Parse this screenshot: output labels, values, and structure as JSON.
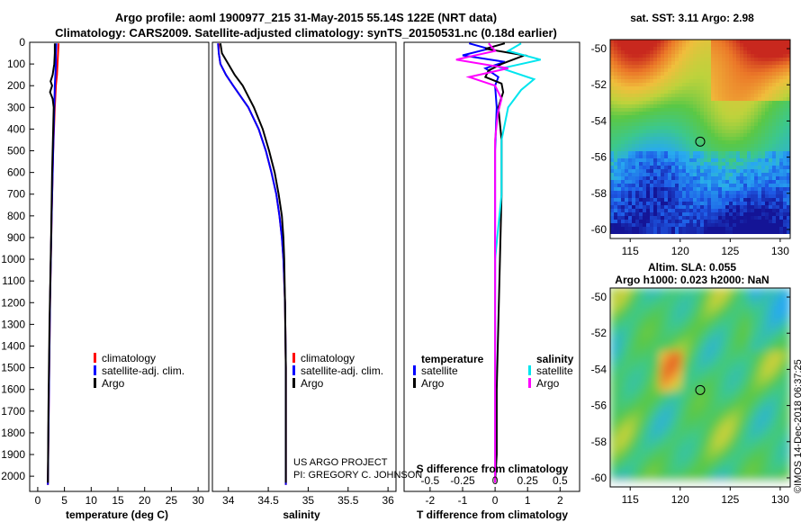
{
  "title_line1": "Argo profile: aoml 1900977_215 31-May-2015 55.14S 122E (NRT data)",
  "title_line2": "Climatology: CARS2009. Satellite-adjusted climatology: synTS_20150531.nc (0.18d earlier)",
  "colors": {
    "climatology": "#ff0000",
    "satellite": "#0000ff",
    "argo": "#000000",
    "sat_s": "#00e5ee",
    "argo_s": "#ff00ff"
  },
  "chart_data": [
    {
      "type": "line",
      "name": "temperature",
      "xlabel": "temperature (deg C)",
      "xlim": [
        -1.5,
        32
      ],
      "xticks": [
        0,
        5,
        10,
        15,
        20,
        25,
        30
      ],
      "xtick_labels": [
        "0",
        "5",
        "10",
        "15",
        "20",
        "25",
        "30"
      ],
      "ylim": [
        0,
        2070
      ],
      "yticks": [
        0,
        100,
        200,
        300,
        400,
        500,
        600,
        700,
        800,
        900,
        1000,
        1100,
        1200,
        1300,
        1400,
        1500,
        1600,
        1700,
        1800,
        1900,
        2000
      ],
      "ytick_labels": [
        "0",
        "100",
        "200",
        "300",
        "400",
        "500",
        "600",
        "700",
        "800",
        "900",
        "1000",
        "1100",
        "1200",
        "1300",
        "1400",
        "1500",
        "1600",
        "1700",
        "1800",
        "1900",
        "2000"
      ],
      "legend": [
        "climatology",
        "satellite-adj. clim.",
        "Argo"
      ],
      "series": [
        {
          "name": "climatology",
          "depth": [
            5,
            50,
            100,
            150,
            200,
            300,
            500,
            800,
            1200,
            1600,
            2040
          ],
          "values": [
            3.9,
            3.8,
            3.7,
            3.6,
            3.4,
            3.2,
            2.9,
            2.6,
            2.3,
            2.1,
            1.9
          ]
        },
        {
          "name": "satellite-adj. clim.",
          "depth": [
            5,
            50,
            100,
            150,
            200,
            300,
            500,
            800,
            1200,
            1600,
            2040
          ],
          "values": [
            3.5,
            3.4,
            3.4,
            3.3,
            3.2,
            3.1,
            2.9,
            2.6,
            2.3,
            2.1,
            1.9
          ]
        },
        {
          "name": "Argo",
          "depth": [
            5,
            50,
            100,
            150,
            180,
            200,
            230,
            260,
            300,
            400,
            600,
            900,
            1300,
            1700,
            2030
          ],
          "values": [
            3.2,
            3.2,
            3.1,
            2.8,
            2.4,
            2.7,
            2.3,
            2.8,
            3.0,
            2.9,
            2.7,
            2.5,
            2.2,
            2.0,
            1.9
          ]
        }
      ]
    },
    {
      "type": "line",
      "name": "salinity",
      "xlabel": "salinity",
      "xlim": [
        33.8,
        36.1
      ],
      "xticks": [
        34,
        34.5,
        35,
        35.5,
        36
      ],
      "xtick_labels": [
        "34",
        "34.5",
        "35",
        "35.5",
        "36"
      ],
      "legend": [
        "climatology",
        "satellite-adj. clim.",
        "Argo"
      ],
      "annotation": [
        "US ARGO PROJECT",
        "PI: GREGORY C. JOHNSON"
      ],
      "series": [
        {
          "name": "climatology",
          "depth": [
            5,
            50,
            100,
            150,
            200,
            300,
            400,
            500,
            600,
            700,
            800,
            900,
            1000,
            1200,
            1500,
            2040
          ],
          "values": [
            33.88,
            33.88,
            33.9,
            33.97,
            34.06,
            34.25,
            34.38,
            34.47,
            34.54,
            34.6,
            34.64,
            34.67,
            34.69,
            34.71,
            34.72,
            34.72
          ]
        },
        {
          "name": "satellite-adj. clim.",
          "depth": [
            5,
            50,
            100,
            150,
            200,
            300,
            400,
            500,
            600,
            700,
            800,
            900,
            1000,
            1200,
            1500,
            2040
          ],
          "values": [
            33.87,
            33.88,
            33.9,
            33.97,
            34.06,
            34.25,
            34.38,
            34.47,
            34.54,
            34.6,
            34.64,
            34.67,
            34.69,
            34.71,
            34.72,
            34.72
          ]
        },
        {
          "name": "Argo",
          "depth": [
            5,
            50,
            100,
            150,
            200,
            300,
            400,
            500,
            600,
            700,
            800,
            900,
            1000,
            1200,
            1500,
            2030
          ],
          "values": [
            33.9,
            33.92,
            34.0,
            34.08,
            34.18,
            34.32,
            34.43,
            34.51,
            34.58,
            34.63,
            34.67,
            34.69,
            34.7,
            34.71,
            34.72,
            34.72
          ]
        }
      ]
    },
    {
      "type": "line",
      "name": "difference",
      "xlabel": "T difference from climatology",
      "xlabel_top": "S difference from climatology",
      "xlim": [
        -2.8,
        2.6
      ],
      "xticks": [
        -2,
        -1,
        0,
        1,
        2
      ],
      "xtick_labels": [
        "-2",
        "-1",
        "0",
        "1",
        "2"
      ],
      "s_tick_labels": [
        "-0.5",
        "-0.25",
        "0",
        "0.25",
        "0.5"
      ],
      "legend_t": {
        "title": "temperature",
        "items": [
          "satellite",
          "Argo"
        ]
      },
      "legend_s": {
        "title": "salinity",
        "items": [
          "satellite",
          "Argo"
        ]
      },
      "series": [
        {
          "name": "T satellite",
          "depth": [
            5,
            30,
            60,
            90,
            120,
            160,
            200,
            300,
            500,
            900,
            1400,
            2000
          ],
          "values": [
            -0.8,
            -0.2,
            -1.0,
            0.3,
            -0.3,
            0.1,
            0.0,
            0.05,
            0.0,
            0.0,
            0.0,
            0.0
          ]
        },
        {
          "name": "T Argo",
          "depth": [
            5,
            30,
            60,
            100,
            130,
            160,
            190,
            230,
            300,
            450,
            700,
            1000,
            1300,
            1600,
            1900,
            2030
          ],
          "values": [
            0.3,
            -0.3,
            0.9,
            0.2,
            -0.2,
            -0.3,
            0.2,
            0.25,
            0.1,
            0.2,
            0.2,
            0.15,
            0.1,
            0.05,
            0.05,
            0.0
          ]
        },
        {
          "name": "S satellite",
          "depth": [
            5,
            40,
            80,
            120,
            170,
            220,
            300,
            450,
            700,
            1000,
            1300,
            1600,
            2000
          ],
          "values": [
            0.2,
            0.1,
            0.35,
            0.05,
            0.3,
            0.2,
            0.1,
            0.05,
            0.05,
            0.0,
            0.0,
            0.0,
            0.0
          ]
        },
        {
          "name": "S Argo",
          "depth": [
            5,
            40,
            80,
            120,
            160,
            200,
            260,
            330,
            450,
            700,
            1000,
            1300,
            1600,
            1900,
            2030
          ],
          "values": [
            -0.05,
            0.0,
            -0.3,
            0.1,
            -0.2,
            0.0,
            0.05,
            0.02,
            0.0,
            0.0,
            0.0,
            0.0,
            0.0,
            0.0,
            0.0
          ]
        }
      ]
    },
    {
      "type": "heatmap",
      "name": "sst_map",
      "title": "sat. SST: 3.11 Argo: 2.98",
      "xticks": [
        115,
        120,
        125,
        130
      ],
      "yticks": [
        -50,
        -52,
        -54,
        -56,
        -58,
        -60
      ],
      "xlim": [
        113,
        131
      ],
      "ylim": [
        -60.5,
        -49.5
      ],
      "argo_position": [
        122,
        -55.14
      ]
    },
    {
      "type": "heatmap",
      "name": "sla_map",
      "title": "Altim. SLA: 0.055",
      "subtitle": "Argo h1000: 0.023 h2000: NaN",
      "xticks": [
        115,
        120,
        125,
        130
      ],
      "yticks": [
        -50,
        -52,
        -54,
        -56,
        -58,
        -60
      ],
      "xlim": [
        113,
        131
      ],
      "ylim": [
        -60.5,
        -49.5
      ],
      "argo_position": [
        122,
        -55.14
      ]
    }
  ],
  "footer_stamp": "©IMOS 14-Dec-2018 06:37:25"
}
